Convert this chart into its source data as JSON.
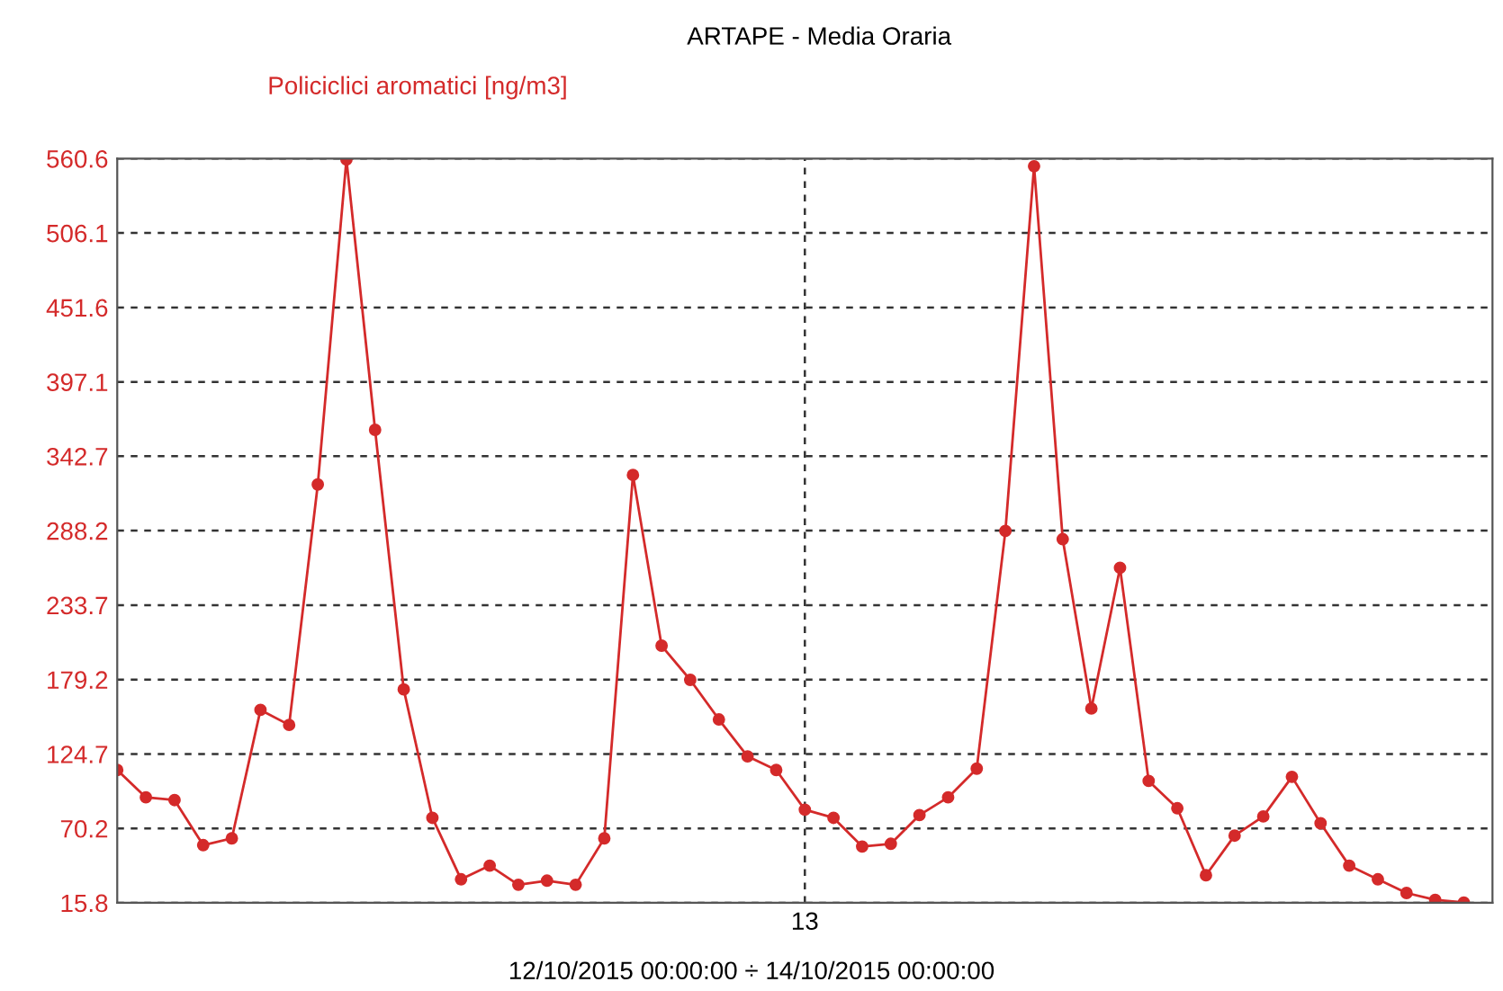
{
  "chart_data": {
    "type": "line",
    "title": "ARTAPE - Media Oraria",
    "ylabel": "Policiclici aromatici [ng/m3]",
    "xlabel": "12/10/2015 00:00:00 ÷ 14/10/2015 00:00:00",
    "categories": [
      null,
      null,
      null,
      null,
      null,
      null,
      null,
      null,
      null,
      null,
      null,
      null,
      null,
      null,
      null,
      null,
      null,
      null,
      null,
      null,
      null,
      null,
      null,
      null,
      "13",
      null,
      null,
      null,
      null,
      null,
      null,
      null,
      null,
      null,
      null,
      null,
      null,
      null,
      null,
      null,
      null,
      null,
      null,
      null,
      null,
      null,
      null,
      null
    ],
    "series": [
      {
        "color": "#d42a2a",
        "values": [
          113,
          93,
          91,
          58,
          63,
          157,
          146,
          322,
          560,
          362,
          172,
          78,
          33,
          43,
          29,
          32,
          29,
          63,
          329,
          204,
          179,
          150,
          123,
          113,
          84,
          78,
          57,
          59,
          80,
          93,
          114,
          288,
          555,
          282,
          158,
          261,
          105,
          85,
          36,
          65,
          79,
          108,
          74,
          43,
          33,
          23,
          18,
          16
        ]
      }
    ],
    "ylim": [
      15.8,
      560.6
    ],
    "yticks": [
      15.8,
      70.2,
      124.7,
      179.2,
      233.7,
      288.2,
      342.7,
      397.1,
      451.6,
      506.1,
      560.6
    ],
    "grid": true,
    "marker": "circle",
    "line_style": "solid"
  }
}
